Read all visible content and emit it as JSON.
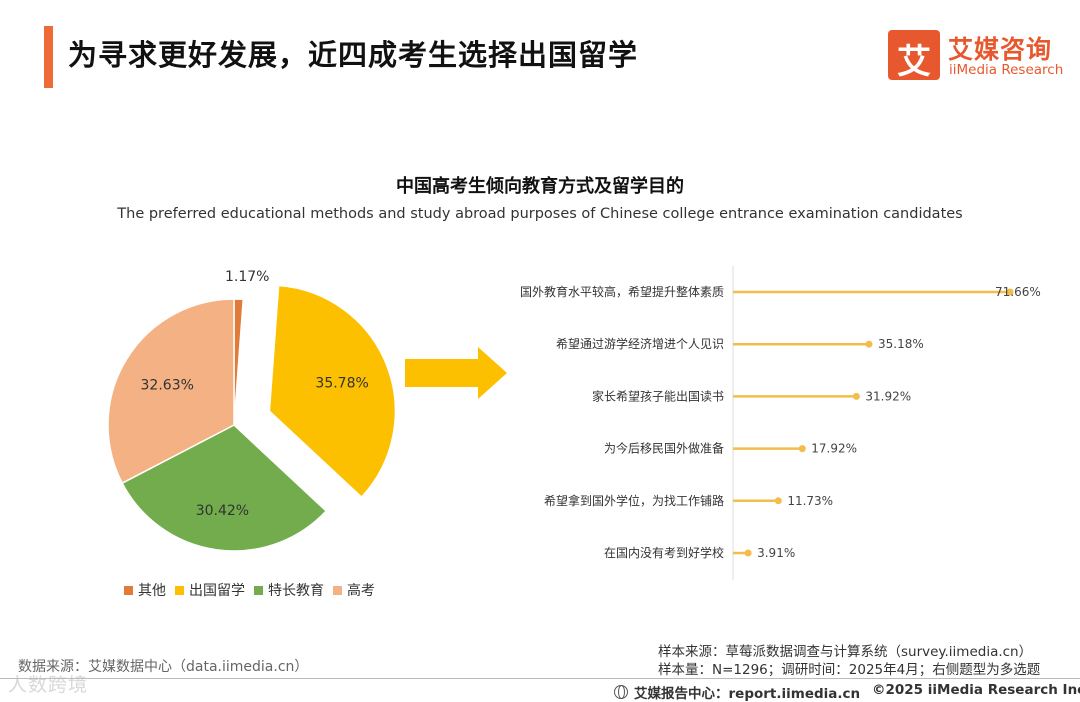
{
  "header": {
    "title": "为寻求更好发展，近四成考生选择出国留学",
    "logo_icon_text": "艾",
    "logo_cn": "艾媒咨询",
    "logo_en": "iiMedia Research"
  },
  "chart_data": [
    {
      "type": "pie",
      "title": "中国高考生倾向教育方式及留学目的",
      "subtitle": "The preferred educational methods and study abroad purposes of Chinese college entrance examination candidates",
      "slices": [
        {
          "name": "其他",
          "value": 1.17,
          "label": "1.17%",
          "color": "#e07b39"
        },
        {
          "name": "出国留学",
          "value": 35.78,
          "label": "35.78%",
          "color": "#fcc000",
          "exploded": true
        },
        {
          "name": "特长教育",
          "value": 30.42,
          "label": "30.42%",
          "color": "#72ac4d"
        },
        {
          "name": "高考",
          "value": 32.63,
          "label": "32.63%",
          "color": "#f4b183"
        }
      ],
      "legend_position": "bottom-left"
    },
    {
      "type": "bar",
      "orientation": "horizontal",
      "style": "lollipop",
      "color": "#f2bd4a",
      "categories": [
        "国外教育水平较高，希望提升整体素质",
        "希望通过游学经济增进个人见识",
        "家长希望孩子能出国读书",
        "为今后移民国外做准备",
        "希望拿到国外学位，为找工作铺路",
        "在国内没有考到好学校"
      ],
      "values": [
        71.66,
        35.18,
        31.92,
        17.92,
        11.73,
        3.91
      ],
      "value_labels": [
        "71.66%",
        "35.18%",
        "31.92%",
        "17.92%",
        "11.73%",
        "3.91%"
      ],
      "xlim": [
        0,
        100
      ]
    }
  ],
  "arrow_color": "#fcc000",
  "footer": {
    "data_source": "数据来源：艾媒数据中心（data.iimedia.cn）",
    "sample_source": "样本来源：草莓派数据调查与计算系统（survey.iimedia.cn）",
    "sample_size": "样本量：N=1296；调研时间：2025年4月；右侧题型为多选题",
    "report_center": "艾媒报告中心：report.iimedia.cn",
    "copyright": "©2025  iiMedia Research  Inc",
    "watermark": "人数跨境"
  }
}
